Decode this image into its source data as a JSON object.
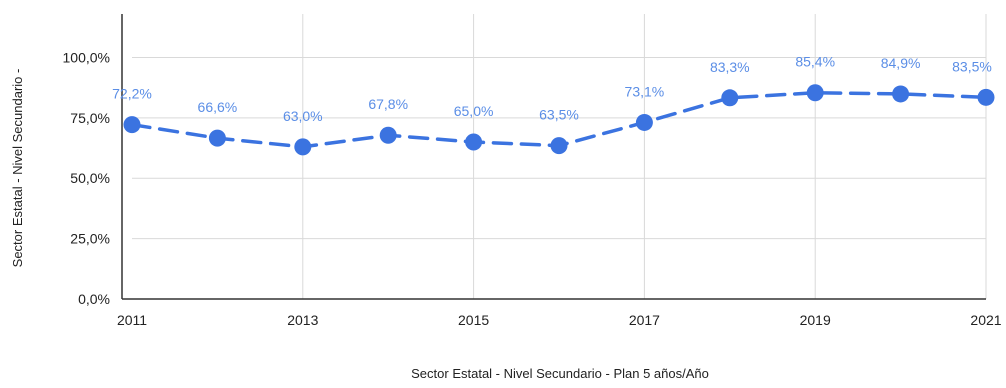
{
  "chart_data": {
    "type": "line",
    "title": "",
    "xlabel": "Sector Estatal - Nivel Secundario - Plan 5 años/Año",
    "ylabel": "Sector Estatal - Nivel Secundario -",
    "x": [
      2011,
      2012,
      2013,
      2014,
      2015,
      2016,
      2017,
      2018,
      2019,
      2020,
      2021
    ],
    "x_ticks": [
      "2011",
      "2013",
      "2015",
      "2017",
      "2019",
      "2021"
    ],
    "y_ticks": [
      "0,0%",
      "25,0%",
      "50,0%",
      "75,0%",
      "100,0%"
    ],
    "ylim": [
      0,
      100
    ],
    "grid": true,
    "line_style": "dashed",
    "series": [
      {
        "values": [
          72.2,
          66.6,
          63.0,
          67.8,
          65.0,
          63.5,
          73.1,
          83.3,
          85.4,
          84.9,
          83.5
        ],
        "labels": [
          "72,2%",
          "66,6%",
          "63,0%",
          "67,8%",
          "65,0%",
          "63,5%",
          "73,1%",
          "83,3%",
          "85,4%",
          "84,9%",
          "83,5%"
        ],
        "color": "#3b73e0",
        "label_color": "#5b8ee6"
      }
    ]
  }
}
